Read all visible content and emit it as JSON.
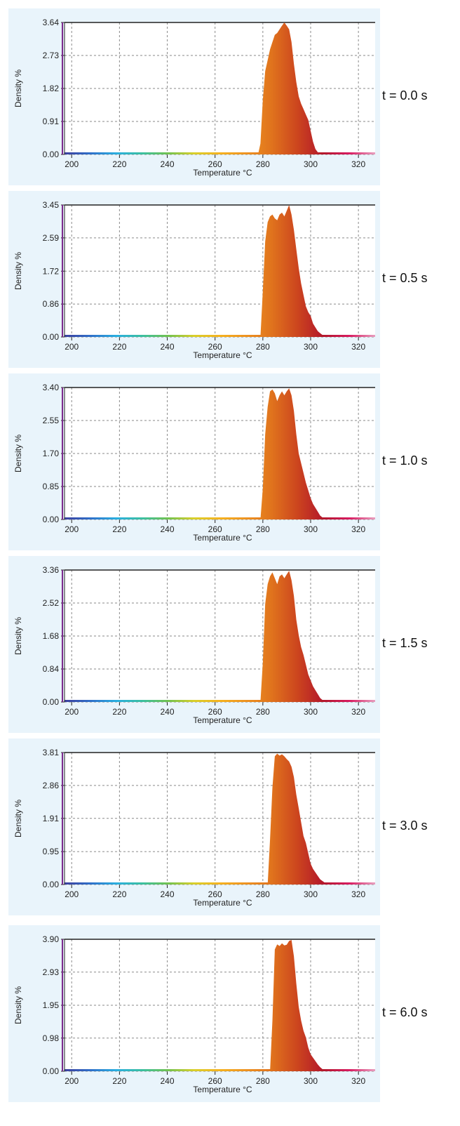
{
  "colors": {
    "panel_background": "#e9f4fb",
    "plot_background": "#ffffff",
    "grid": "#8a8a8a",
    "axis": "#222222",
    "left_axis_line": "#7b2a8c",
    "gradient": [
      "#3b3f9e",
      "#2f6fc9",
      "#29aee0",
      "#3bbfa0",
      "#70c250",
      "#d9cf2a",
      "#f5b21f",
      "#ee9320",
      "#e0731d",
      "#cc451e",
      "#b3172b",
      "#d81b60",
      "#e8a0c0"
    ]
  },
  "chart_data": [
    {
      "type": "area",
      "label": "t = 0.0 s",
      "xlabel": "Temperature °C",
      "ylabel": "Density %",
      "xlim": [
        197,
        327
      ],
      "xticks": [
        200,
        220,
        240,
        260,
        280,
        300,
        320
      ],
      "ylim": [
        0,
        3.64
      ],
      "yticks": [
        "0.00",
        "0.91",
        "1.82",
        "2.73",
        "3.64"
      ],
      "x": [
        197,
        278,
        279,
        280,
        281,
        282,
        283,
        284,
        285,
        286,
        287,
        288,
        289,
        290,
        291,
        292,
        293,
        294,
        295,
        296,
        297,
        298,
        299,
        300,
        301,
        302,
        303,
        304,
        327
      ],
      "values": [
        0,
        0,
        0.3,
        1.5,
        2.3,
        2.6,
        2.9,
        3.1,
        3.3,
        3.35,
        3.45,
        3.55,
        3.64,
        3.55,
        3.45,
        3.1,
        2.5,
        2.0,
        1.6,
        1.4,
        1.25,
        1.1,
        0.95,
        0.65,
        0.35,
        0.15,
        0.06,
        0,
        0
      ]
    },
    {
      "type": "area",
      "label": "t = 0.5 s",
      "xlabel": "Temperature °C",
      "ylabel": "Density %",
      "xlim": [
        197,
        327
      ],
      "xticks": [
        200,
        220,
        240,
        260,
        280,
        300,
        320
      ],
      "ylim": [
        0,
        3.45
      ],
      "yticks": [
        "0.00",
        "0.86",
        "1.72",
        "2.59",
        "3.45"
      ],
      "x": [
        197,
        279,
        280,
        281,
        282,
        283,
        284,
        285,
        286,
        287,
        288,
        289,
        290,
        291,
        292,
        293,
        294,
        295,
        296,
        297,
        298,
        299,
        300,
        301,
        302,
        303,
        304,
        305,
        306,
        327
      ],
      "values": [
        0,
        0,
        1.2,
        2.5,
        3.0,
        3.15,
        3.2,
        3.1,
        3.05,
        3.2,
        3.25,
        3.15,
        3.3,
        3.45,
        3.2,
        2.8,
        2.3,
        1.8,
        1.4,
        1.1,
        0.8,
        0.65,
        0.55,
        0.35,
        0.25,
        0.15,
        0.1,
        0.05,
        0,
        0
      ]
    },
    {
      "type": "area",
      "label": "t = 1.0 s",
      "xlabel": "Temperature °C",
      "ylabel": "Density %",
      "xlim": [
        197,
        327
      ],
      "xticks": [
        200,
        220,
        240,
        260,
        280,
        300,
        320
      ],
      "ylim": [
        0,
        3.4
      ],
      "yticks": [
        "0.00",
        "0.85",
        "1.70",
        "2.55",
        "3.40"
      ],
      "x": [
        197,
        279,
        280,
        281,
        282,
        283,
        284,
        285,
        286,
        287,
        288,
        289,
        290,
        291,
        292,
        293,
        294,
        295,
        296,
        297,
        298,
        299,
        300,
        301,
        302,
        303,
        304,
        305,
        306,
        327
      ],
      "values": [
        0,
        0,
        0.8,
        2.2,
        2.9,
        3.3,
        3.35,
        3.25,
        3.05,
        3.2,
        3.3,
        3.2,
        3.3,
        3.38,
        3.2,
        2.8,
        2.2,
        1.7,
        1.45,
        1.2,
        0.95,
        0.75,
        0.55,
        0.4,
        0.3,
        0.2,
        0.1,
        0.05,
        0,
        0
      ]
    },
    {
      "type": "area",
      "label": "t = 1.5 s",
      "xlabel": "Temperature °C",
      "ylabel": "Density %",
      "xlim": [
        197,
        327
      ],
      "xticks": [
        200,
        220,
        240,
        260,
        280,
        300,
        320
      ],
      "ylim": [
        0,
        3.36
      ],
      "yticks": [
        "0.00",
        "0.84",
        "1.68",
        "2.52",
        "3.36"
      ],
      "x": [
        197,
        279,
        280,
        281,
        282,
        283,
        284,
        285,
        286,
        287,
        288,
        289,
        290,
        291,
        292,
        293,
        294,
        295,
        296,
        297,
        298,
        299,
        300,
        301,
        302,
        303,
        304,
        305,
        306,
        327
      ],
      "values": [
        0,
        0,
        1.0,
        2.5,
        3.0,
        3.2,
        3.3,
        3.15,
        3.0,
        3.2,
        3.25,
        3.15,
        3.25,
        3.34,
        3.1,
        2.7,
        2.1,
        1.7,
        1.4,
        1.2,
        0.95,
        0.7,
        0.55,
        0.4,
        0.3,
        0.2,
        0.1,
        0.05,
        0,
        0
      ]
    },
    {
      "type": "area",
      "label": "t = 3.0 s",
      "xlabel": "Temperature °C",
      "ylabel": "Density %",
      "xlim": [
        197,
        327
      ],
      "xticks": [
        200,
        220,
        240,
        260,
        280,
        300,
        320
      ],
      "ylim": [
        0,
        3.81
      ],
      "yticks": [
        "0.00",
        "0.95",
        "1.91",
        "2.86",
        "3.81"
      ],
      "x": [
        197,
        282,
        283,
        284,
        285,
        286,
        287,
        288,
        289,
        290,
        291,
        292,
        293,
        294,
        295,
        296,
        297,
        298,
        299,
        300,
        301,
        302,
        303,
        304,
        305,
        306,
        307,
        327
      ],
      "values": [
        0,
        0,
        1.3,
        2.8,
        3.7,
        3.78,
        3.72,
        3.76,
        3.7,
        3.62,
        3.55,
        3.4,
        3.1,
        2.6,
        2.2,
        1.8,
        1.4,
        1.2,
        0.9,
        0.6,
        0.45,
        0.35,
        0.25,
        0.15,
        0.1,
        0.05,
        0,
        0
      ]
    },
    {
      "type": "area",
      "label": "t = 6.0 s",
      "xlabel": "Temperature °C",
      "ylabel": "Density %",
      "xlim": [
        197,
        327
      ],
      "xticks": [
        200,
        220,
        240,
        260,
        280,
        300,
        320
      ],
      "ylim": [
        0,
        3.9
      ],
      "yticks": [
        "0.00",
        "0.98",
        "1.95",
        "2.93",
        "3.90"
      ],
      "x": [
        197,
        283,
        284,
        285,
        286,
        287,
        288,
        289,
        290,
        291,
        292,
        293,
        294,
        295,
        296,
        297,
        298,
        299,
        300,
        301,
        302,
        303,
        304,
        305,
        306,
        307,
        327
      ],
      "values": [
        0,
        0,
        1.5,
        3.6,
        3.75,
        3.7,
        3.78,
        3.72,
        3.74,
        3.85,
        3.88,
        3.4,
        2.6,
        1.9,
        1.5,
        1.2,
        1.0,
        0.7,
        0.5,
        0.4,
        0.3,
        0.2,
        0.12,
        0.06,
        0.03,
        0,
        0
      ]
    }
  ]
}
